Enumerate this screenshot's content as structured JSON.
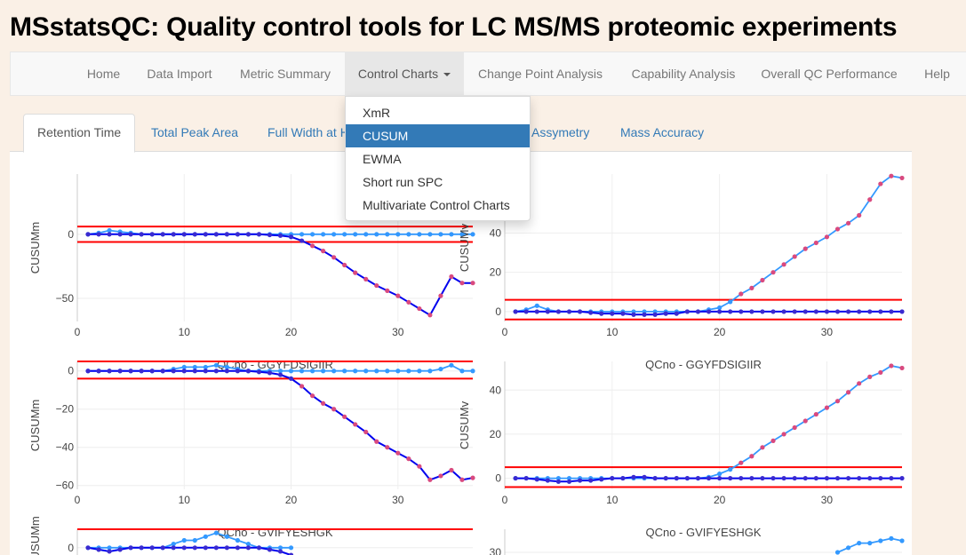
{
  "app": {
    "title": "MSstatsQC: Quality control tools for LC MS/MS proteomic experiments"
  },
  "nav": [
    {
      "label": "Home",
      "active": false
    },
    {
      "label": "Data Import",
      "active": false
    },
    {
      "label": "Metric Summary",
      "active": false
    },
    {
      "label": "Control Charts",
      "active": true,
      "dropdown": true
    },
    {
      "label": "Change Point Analysis",
      "active": false
    },
    {
      "label": "Capability Analysis",
      "active": false
    },
    {
      "label": "Overall QC Performance",
      "active": false
    },
    {
      "label": "Help",
      "active": false
    }
  ],
  "dropdown_menu": {
    "items": [
      "XmR",
      "CUSUM",
      "EWMA",
      "Short run SPC",
      "Multivariate Control Charts"
    ],
    "selected": "CUSUM"
  },
  "tabs": [
    {
      "label": "Retention Time",
      "active": true
    },
    {
      "label": "Total Peak Area",
      "active": false
    },
    {
      "label": "Full Width at H",
      "active": false
    },
    {
      "label": "Assymetry",
      "active": false
    },
    {
      "label": "Mass Accuracy",
      "active": false
    }
  ],
  "colors": {
    "limit": "#ff0000",
    "line_dark": "#0000ee",
    "line_light": "#3399ff",
    "marker_out": "#d94a7f",
    "marker_in": "#3a2ad0"
  },
  "chart_data": [
    {
      "type": "line",
      "ylabel": "CUSUMm",
      "xlim": [
        0,
        37
      ],
      "ylim": [
        -68,
        47
      ],
      "xticks": [
        "10",
        "20",
        "30"
      ],
      "xtick_values": [
        10,
        20,
        30
      ],
      "yticks": [
        "0",
        "−50"
      ],
      "ytick_values": [
        0,
        -50
      ],
      "limits": [
        6,
        -6
      ],
      "series": [
        {
          "x": [
            1,
            2,
            3,
            4,
            5,
            6,
            7,
            8,
            9,
            10,
            11,
            12,
            13,
            14,
            15,
            16,
            17,
            18,
            19,
            20,
            21,
            22,
            23,
            24,
            25,
            26,
            27,
            28,
            29,
            30,
            31,
            32,
            33,
            34,
            35,
            36,
            37
          ],
          "values": [
            0,
            1,
            3,
            2,
            1,
            0,
            0,
            0,
            0,
            0,
            0,
            0,
            0,
            0,
            0,
            0,
            0,
            0,
            0,
            0,
            0,
            0,
            0,
            0,
            0,
            0,
            0,
            0,
            0,
            0,
            0,
            0,
            0,
            0,
            0,
            0,
            0
          ]
        },
        {
          "x": [
            1,
            2,
            3,
            4,
            5,
            6,
            7,
            8,
            9,
            10,
            11,
            12,
            13,
            14,
            15,
            16,
            17,
            18,
            19,
            20,
            21,
            22,
            23,
            24,
            25,
            26,
            27,
            28,
            29,
            30,
            31,
            32,
            33,
            34,
            35,
            36,
            37
          ],
          "values": [
            0,
            0,
            0,
            0,
            0,
            0,
            0,
            0,
            0,
            0,
            0,
            0,
            0,
            0,
            0,
            0,
            0,
            -0.5,
            -1,
            -2,
            -5,
            -9,
            -13,
            -18,
            -24,
            -30,
            -35,
            -40,
            -44,
            -48,
            -53,
            -58,
            -63,
            -48,
            -33,
            -38,
            -38
          ]
        }
      ]
    },
    {
      "type": "line",
      "ylabel": "CUSUMv",
      "xlim": [
        0,
        37
      ],
      "ylim": [
        -5,
        70
      ],
      "xticks": [
        "10",
        "20",
        "30"
      ],
      "xtick_values": [
        10,
        20,
        30
      ],
      "yticks": [
        "0",
        "20",
        "40"
      ],
      "ytick_values": [
        0,
        20,
        40
      ],
      "limits": [
        6,
        -4
      ],
      "series": [
        {
          "x": [
            1,
            2,
            3,
            4,
            5,
            6,
            7,
            8,
            9,
            10,
            11,
            12,
            13,
            14,
            15,
            16,
            17,
            18,
            19,
            20,
            21,
            22,
            23,
            24,
            25,
            26,
            27,
            28,
            29,
            30,
            31,
            32,
            33,
            34,
            35,
            36,
            37
          ],
          "values": [
            0,
            1,
            3,
            1,
            0,
            0,
            0,
            0,
            0,
            0,
            0,
            0,
            0,
            0,
            0,
            0,
            0,
            0,
            1,
            2,
            5,
            9,
            12,
            16,
            20,
            24,
            28,
            32,
            35,
            38,
            42,
            45,
            49,
            57,
            65,
            69,
            68
          ]
        },
        {
          "x": [
            1,
            2,
            3,
            4,
            5,
            6,
            7,
            8,
            9,
            10,
            11,
            12,
            13,
            14,
            15,
            16,
            17,
            18,
            19,
            20,
            21,
            22,
            23,
            24,
            25,
            26,
            27,
            28,
            29,
            30,
            31,
            32,
            33,
            34,
            35,
            36,
            37
          ],
          "values": [
            0,
            0,
            0,
            0,
            0,
            0,
            0,
            -0.5,
            -1,
            -1,
            -1,
            -1.5,
            -1.5,
            -1.5,
            -1,
            -1,
            0,
            0,
            0,
            0,
            0,
            0,
            0,
            0,
            0,
            0,
            0,
            0,
            0,
            0,
            0,
            0,
            0,
            0,
            0,
            0,
            0
          ]
        }
      ]
    },
    {
      "type": "line",
      "title": "QCno -  GGYFDSIGIIR",
      "ylabel": "CUSUMm",
      "xlim": [
        0,
        37
      ],
      "ylim": [
        -62,
        5
      ],
      "xticks": [
        "10",
        "20",
        "30"
      ],
      "xtick_values": [
        10,
        20,
        30
      ],
      "yticks": [
        "0",
        "−20",
        "−40",
        "−60"
      ],
      "ytick_values": [
        0,
        -20,
        -40,
        -60
      ],
      "limits": [
        5,
        -4
      ],
      "series": [
        {
          "x": [
            1,
            2,
            3,
            4,
            5,
            6,
            7,
            8,
            9,
            10,
            11,
            12,
            13,
            14,
            15,
            16,
            17,
            18,
            19,
            20,
            21,
            22,
            23,
            24,
            25,
            26,
            27,
            28,
            29,
            30,
            31,
            32,
            33,
            34,
            35,
            36,
            37
          ],
          "values": [
            0,
            0,
            0,
            0,
            0,
            0,
            0,
            0,
            1,
            2,
            2,
            2,
            3,
            2,
            1,
            0,
            0,
            0,
            0,
            0,
            0,
            0,
            0,
            0,
            0,
            0,
            0,
            0,
            0,
            0,
            0,
            0,
            0,
            1,
            3,
            0,
            0
          ]
        },
        {
          "x": [
            1,
            2,
            3,
            4,
            5,
            6,
            7,
            8,
            9,
            10,
            11,
            12,
            13,
            14,
            15,
            16,
            17,
            18,
            19,
            20,
            21,
            22,
            23,
            24,
            25,
            26,
            27,
            28,
            29,
            30,
            31,
            32,
            33,
            34,
            35,
            36,
            37
          ],
          "values": [
            0,
            0,
            0,
            0,
            0,
            0,
            0,
            0,
            0,
            0,
            0,
            0,
            0,
            0,
            0,
            0,
            -0.5,
            -1,
            -2,
            -4,
            -8,
            -13,
            -17,
            -20,
            -24,
            -28,
            -32,
            -37,
            -40,
            -43,
            -46,
            -50,
            -57,
            -55,
            -52,
            -57,
            -56
          ]
        }
      ]
    },
    {
      "type": "line",
      "title": "QCno -  GGYFDSIGIIR",
      "ylabel": "CUSUMv",
      "xlim": [
        0,
        37
      ],
      "ylim": [
        -5,
        53
      ],
      "xticks": [
        "10",
        "20",
        "30"
      ],
      "xtick_values": [
        10,
        20,
        30
      ],
      "yticks": [
        "0",
        "20",
        "40"
      ],
      "ytick_values": [
        0,
        20,
        40
      ],
      "limits": [
        5,
        -4
      ],
      "series": [
        {
          "x": [
            1,
            2,
            3,
            4,
            5,
            6,
            7,
            8,
            9,
            10,
            11,
            12,
            13,
            14,
            15,
            16,
            17,
            18,
            19,
            20,
            21,
            22,
            23,
            24,
            25,
            26,
            27,
            28,
            29,
            30,
            31,
            32,
            33,
            34,
            35,
            36,
            37
          ],
          "values": [
            0,
            0,
            0,
            0,
            0,
            0,
            0,
            0,
            0,
            0,
            0,
            0,
            0,
            0,
            0,
            0,
            0,
            0,
            0.5,
            2,
            4,
            7,
            10,
            14,
            17,
            20,
            23,
            26,
            29,
            32,
            35,
            39,
            43,
            46,
            48,
            51,
            50
          ]
        },
        {
          "x": [
            1,
            2,
            3,
            4,
            5,
            6,
            7,
            8,
            9,
            10,
            11,
            12,
            13,
            14,
            15,
            16,
            17,
            18,
            19,
            20,
            21,
            22,
            23,
            24,
            25,
            26,
            27,
            28,
            29,
            30,
            31,
            32,
            33,
            34,
            35,
            36,
            37
          ],
          "values": [
            0,
            0,
            -0.5,
            -1,
            -1.5,
            -1.5,
            -1,
            -1,
            -0.5,
            0,
            0,
            0.5,
            0.5,
            0,
            0,
            0,
            0,
            0,
            0,
            0,
            0,
            0,
            0,
            0,
            0,
            0,
            0,
            0,
            0,
            0,
            0,
            0,
            0,
            0,
            0,
            0,
            0
          ]
        }
      ]
    },
    {
      "type": "line",
      "title": "QCno -  GVIFYESHGK",
      "ylabel": "CUSUMm",
      "xlim": [
        0,
        37
      ],
      "ylim": [
        -20,
        5
      ],
      "xticks": [],
      "xtick_values": [],
      "yticks": [
        "0"
      ],
      "ytick_values": [
        0
      ],
      "limits": [
        5,
        -4
      ],
      "series": [
        {
          "x": [
            1,
            2,
            3,
            4,
            5,
            6,
            7,
            8,
            9,
            10,
            11,
            12,
            13,
            14,
            15,
            16,
            17,
            18,
            19,
            20
          ],
          "values": [
            0,
            0,
            0,
            0,
            0,
            0,
            0,
            0,
            1,
            2,
            2,
            3,
            4,
            3,
            2,
            1,
            0,
            0,
            0,
            0
          ]
        },
        {
          "x": [
            1,
            2,
            3,
            4,
            5,
            6,
            7,
            8,
            9,
            10,
            11,
            12,
            13,
            14,
            15,
            16,
            17,
            18,
            19,
            20
          ],
          "values": [
            0,
            -0.5,
            -1,
            -0.5,
            0,
            0,
            0,
            0,
            0,
            0,
            0,
            0,
            0,
            0,
            0,
            0,
            0,
            -0.5,
            -1,
            -2
          ]
        }
      ]
    },
    {
      "type": "line",
      "title": "QCno -  GVIFYESHGK",
      "ylabel": "",
      "xlim": [
        0,
        37
      ],
      "ylim": [
        0,
        40
      ],
      "xticks": [],
      "xtick_values": [],
      "yticks": [
        "30"
      ],
      "ytick_values": [
        30
      ],
      "limits": [],
      "series": [
        {
          "x": [
            31,
            32,
            33,
            34,
            35,
            36,
            37
          ],
          "values": [
            30,
            32,
            34,
            34,
            35,
            36,
            35
          ]
        }
      ]
    }
  ]
}
